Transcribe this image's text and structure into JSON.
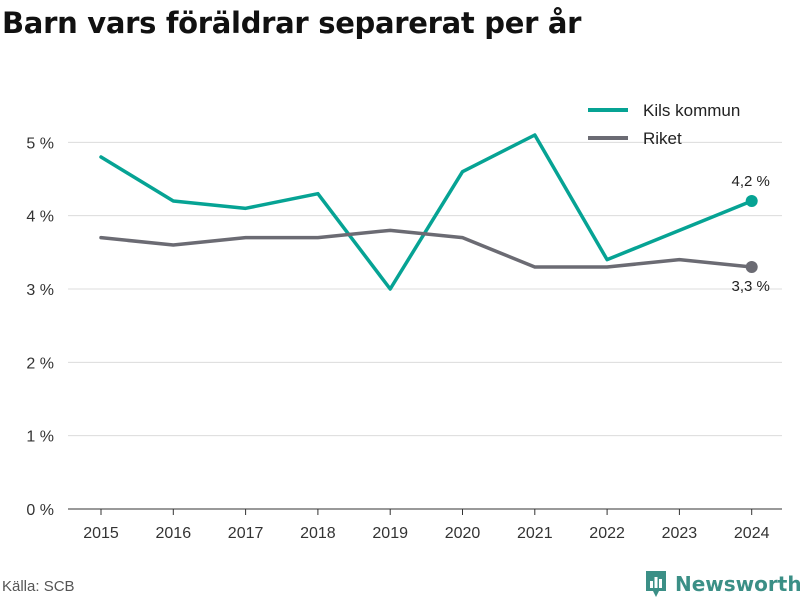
{
  "title": "Barn vars föräldrar separerat per år",
  "source": "Källa: SCB",
  "brand": {
    "name": "Newsworthy",
    "icon": "newsworthy-logo-icon",
    "color": "#3b8f86"
  },
  "chart_data": {
    "type": "line",
    "x": [
      "2015",
      "2016",
      "2017",
      "2018",
      "2019",
      "2020",
      "2021",
      "2022",
      "2023",
      "2024"
    ],
    "series": [
      {
        "name": "Kils kommun",
        "color": "#06a394",
        "values": [
          4.8,
          4.2,
          4.1,
          4.3,
          3.0,
          4.6,
          5.1,
          3.4,
          3.8,
          4.2
        ]
      },
      {
        "name": "Riket",
        "color": "#6b6b73",
        "values": [
          3.7,
          3.6,
          3.7,
          3.7,
          3.8,
          3.7,
          3.3,
          3.3,
          3.4,
          3.3
        ]
      }
    ],
    "yticks": [
      0,
      1,
      2,
      3,
      4,
      5
    ],
    "ytick_labels": [
      "0 %",
      "1 %",
      "2 %",
      "3 %",
      "4 %",
      "5 %"
    ],
    "ylim": [
      0,
      5.85
    ],
    "grid": true,
    "legend": "top-right",
    "end_labels": [
      "4,2 %",
      "3,3 %"
    ],
    "xlabel": "",
    "ylabel": ""
  }
}
